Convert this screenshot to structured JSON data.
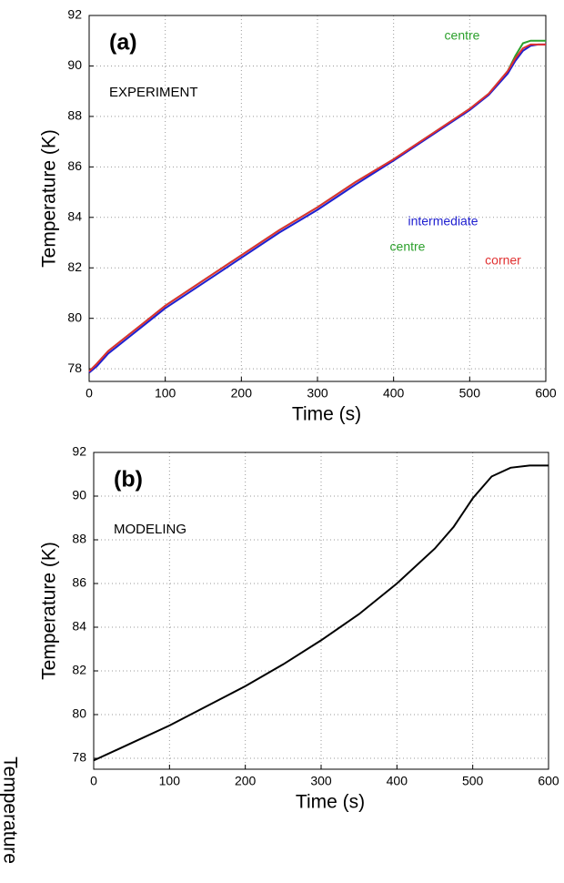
{
  "chart_data": [
    {
      "type": "line",
      "title": "(a)",
      "label": "EXPERIMENT",
      "xlabel": "Time (s)",
      "ylabel": "Temperature (K)",
      "x": [
        0,
        10,
        25,
        50,
        75,
        100,
        150,
        200,
        250,
        300,
        350,
        400,
        450,
        500,
        525,
        550,
        560,
        570,
        580,
        590,
        600
      ],
      "series": [
        {
          "name": "centre",
          "color": "#2ca02c",
          "values": [
            77.9,
            78.2,
            78.7,
            79.3,
            79.9,
            80.5,
            81.5,
            82.5,
            83.5,
            84.4,
            85.4,
            86.3,
            87.3,
            88.3,
            88.9,
            89.8,
            90.4,
            90.9,
            91.0,
            91.0,
            91.0
          ]
        },
        {
          "name": "intermediate",
          "color": "#1f1fd0",
          "values": [
            77.85,
            78.1,
            78.6,
            79.2,
            79.8,
            80.4,
            81.4,
            82.4,
            83.4,
            84.3,
            85.3,
            86.25,
            87.25,
            88.25,
            88.85,
            89.7,
            90.2,
            90.6,
            90.8,
            90.85,
            90.85
          ]
        },
        {
          "name": "corner",
          "color": "#e03030",
          "values": [
            77.9,
            78.2,
            78.7,
            79.3,
            79.9,
            80.5,
            81.5,
            82.5,
            83.5,
            84.4,
            85.4,
            86.3,
            87.3,
            88.3,
            88.9,
            89.8,
            90.3,
            90.7,
            90.85,
            90.85,
            90.85
          ]
        }
      ],
      "xlim": [
        0,
        600
      ],
      "xticks": [
        0,
        100,
        200,
        300,
        400,
        500,
        600
      ],
      "ylim": [
        77.5,
        92
      ],
      "yticks": [
        78,
        80,
        82,
        84,
        86,
        88,
        90,
        92
      ],
      "grid": true
    },
    {
      "type": "line",
      "title": "(b)",
      "label": "MODELING",
      "xlabel": "Time (s)",
      "ylabel": "Temperature (K)",
      "x": [
        0,
        50,
        100,
        150,
        200,
        250,
        300,
        350,
        400,
        450,
        475,
        500,
        525,
        550,
        575,
        600
      ],
      "values": [
        77.9,
        78.7,
        79.5,
        80.4,
        81.3,
        82.3,
        83.4,
        84.6,
        86.0,
        87.6,
        88.6,
        89.9,
        90.9,
        91.3,
        91.4,
        91.4
      ],
      "color": "#000000",
      "xlim": [
        0,
        600
      ],
      "xticks": [
        0,
        100,
        200,
        300,
        400,
        500,
        600
      ],
      "ylim": [
        77.5,
        92
      ],
      "yticks": [
        78,
        80,
        82,
        84,
        86,
        88,
        90,
        92
      ],
      "grid": true
    }
  ],
  "stray_text": "Temperature"
}
